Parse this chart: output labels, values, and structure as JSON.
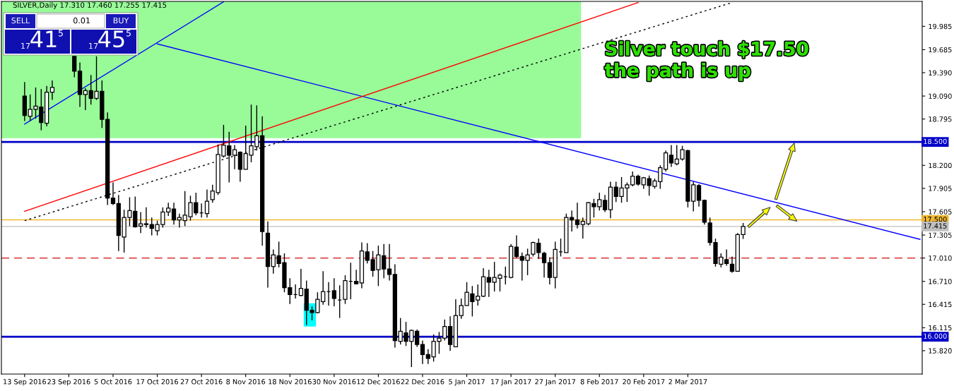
{
  "chart_data": {
    "type": "candlestick",
    "title": "SILVER,Daily 17.310 17.460 17.255 17.415",
    "categories": [
      "13 Sep 2016",
      null,
      null,
      null,
      null,
      null,
      null,
      null,
      "23 Sep 2016",
      null,
      null,
      null,
      null,
      null,
      null,
      null,
      "5 Oct 2016",
      null,
      null,
      null,
      null,
      null,
      null,
      null,
      "17 Oct 2016",
      null,
      null,
      null,
      null,
      null,
      null,
      null,
      "27 Oct 2016",
      null,
      null,
      null,
      null,
      null,
      null,
      null,
      "8 Nov 2016",
      null,
      null,
      null,
      null,
      null,
      null,
      null,
      "18 Nov 2016",
      null,
      null,
      null,
      null,
      null,
      null,
      null,
      "30 Nov 2016",
      null,
      null,
      null,
      null,
      null,
      null,
      null,
      "12 Dec 2016",
      null,
      null,
      null,
      null,
      null,
      null,
      null,
      "22 Dec 2016",
      null,
      null,
      null,
      null,
      null,
      null,
      null,
      "5 Jan 2017",
      null,
      null,
      null,
      null,
      null,
      null,
      null,
      "17 Jan 2017",
      null,
      null,
      null,
      null,
      null,
      null,
      null,
      "27 Jan 2017",
      null,
      null,
      null,
      null,
      null,
      null,
      null,
      "8 Feb 2017",
      null,
      null,
      null,
      null,
      null,
      null,
      null,
      "20 Feb 2017",
      null,
      null,
      null,
      null,
      null,
      null,
      null,
      "2 Mar 2017",
      null,
      null,
      null,
      null,
      null,
      null,
      null,
      null,
      null,
      null,
      null,
      null,
      null,
      null,
      null,
      null,
      null,
      null,
      null,
      null,
      null,
      null,
      null,
      null,
      null,
      null,
      null,
      null,
      null,
      null,
      null,
      null,
      null,
      null,
      null,
      null,
      null,
      null,
      null,
      null,
      null,
      null
    ],
    "ohlc": [
      [
        19.09,
        19.27,
        18.77,
        18.84
      ],
      [
        18.83,
        19.11,
        18.77,
        18.92
      ],
      [
        18.92,
        19.2,
        18.8,
        18.96
      ],
      [
        18.95,
        19.18,
        18.65,
        18.75
      ],
      [
        18.74,
        19.22,
        18.7,
        19.14
      ],
      [
        19.14,
        19.29,
        19.04,
        19.2
      ],
      null,
      null,
      null,
      [
        19.6,
        19.6,
        19.33,
        19.41
      ],
      [
        19.41,
        19.52,
        18.95,
        19.11
      ],
      [
        19.11,
        19.19,
        18.91,
        19.16
      ],
      [
        19.16,
        19.36,
        18.98,
        19.06
      ],
      [
        19.06,
        19.6,
        19.04,
        19.15
      ],
      [
        19.15,
        19.29,
        18.68,
        18.79
      ],
      [
        18.79,
        18.88,
        17.69,
        17.78
      ],
      [
        17.78,
        17.98,
        17.69,
        17.71
      ],
      [
        17.71,
        17.82,
        17.1,
        17.3
      ],
      [
        17.28,
        17.63,
        17.08,
        17.53
      ],
      [
        17.53,
        17.79,
        17.42,
        17.62
      ],
      [
        17.61,
        17.8,
        17.4,
        17.41
      ],
      [
        17.42,
        17.6,
        17.33,
        17.45
      ],
      [
        17.45,
        17.66,
        17.4,
        17.44
      ],
      [
        17.44,
        17.53,
        17.3,
        17.39
      ],
      [
        17.36,
        17.49,
        17.3,
        17.44
      ],
      [
        17.44,
        17.66,
        17.4,
        17.6
      ],
      [
        17.6,
        17.72,
        17.55,
        17.65
      ],
      [
        17.64,
        17.72,
        17.44,
        17.5
      ],
      [
        17.5,
        17.58,
        17.4,
        17.53
      ],
      [
        17.49,
        17.87,
        17.42,
        17.56
      ],
      [
        17.54,
        17.81,
        17.49,
        17.72
      ],
      [
        17.72,
        17.85,
        17.56,
        17.59
      ],
      [
        17.59,
        17.71,
        17.53,
        17.59
      ],
      [
        17.58,
        17.89,
        17.53,
        17.74
      ],
      [
        17.76,
        17.95,
        17.72,
        17.87
      ],
      [
        17.85,
        18.47,
        17.82,
        18.34
      ],
      [
        18.32,
        18.72,
        18.3,
        18.46
      ],
      [
        18.45,
        18.63,
        17.98,
        18.33
      ],
      [
        18.33,
        18.46,
        18.15,
        18.4
      ],
      [
        18.37,
        18.38,
        17.99,
        18.15
      ],
      [
        18.15,
        18.71,
        18.15,
        18.35
      ],
      [
        18.33,
        18.98,
        18.24,
        18.45
      ],
      [
        18.44,
        18.97,
        18.39,
        18.58
      ],
      [
        18.58,
        18.83,
        17.17,
        17.35
      ],
      [
        17.33,
        17.48,
        16.63,
        16.9
      ],
      [
        16.9,
        17.12,
        16.81,
        17.05
      ],
      [
        17.04,
        17.22,
        16.89,
        16.94
      ],
      [
        16.95,
        17.07,
        16.57,
        16.63
      ],
      [
        16.63,
        16.75,
        16.42,
        16.54
      ],
      [
        16.54,
        16.67,
        16.49,
        16.54
      ],
      [
        16.53,
        16.87,
        16.52,
        16.62
      ],
      [
        16.61,
        16.72,
        16.15,
        16.34
      ],
      [
        16.34,
        16.39,
        16.21,
        16.31
      ],
      [
        16.31,
        16.57,
        16.3,
        16.48
      ],
      [
        16.45,
        16.84,
        16.41,
        16.58
      ],
      [
        16.58,
        16.7,
        16.4,
        16.58
      ],
      [
        16.59,
        16.75,
        16.39,
        16.49
      ],
      [
        16.47,
        16.66,
        16.24,
        16.47
      ],
      [
        16.48,
        16.79,
        16.42,
        16.72
      ],
      [
        16.71,
        16.95,
        16.48,
        16.71
      ],
      [
        16.71,
        16.86,
        16.67,
        16.68
      ],
      [
        16.69,
        17.21,
        16.62,
        17.1
      ],
      [
        17.09,
        17.2,
        16.94,
        16.98
      ],
      [
        16.99,
        17.1,
        16.77,
        16.85
      ],
      [
        16.86,
        17.17,
        16.65,
        17.05
      ],
      [
        17.04,
        17.19,
        16.75,
        16.87
      ],
      [
        16.87,
        17.19,
        16.72,
        16.8
      ],
      [
        16.8,
        16.93,
        15.86,
        15.95
      ],
      [
        15.94,
        16.24,
        15.9,
        16.07
      ],
      [
        16.05,
        16.19,
        15.88,
        15.94
      ],
      [
        15.94,
        16.09,
        15.61,
        16.08
      ],
      [
        16.07,
        16.09,
        15.87,
        15.9
      ],
      [
        15.9,
        15.95,
        15.65,
        15.77
      ],
      [
        15.77,
        15.84,
        15.65,
        15.72
      ],
      [
        15.74,
        16.03,
        15.68,
        15.94
      ],
      [
        15.94,
        16.06,
        15.78,
        15.98
      ],
      [
        15.98,
        16.22,
        15.95,
        16.13
      ],
      [
        16.13,
        16.26,
        15.82,
        15.9
      ],
      [
        15.87,
        16.48,
        15.87,
        16.27
      ],
      [
        16.27,
        16.49,
        16.23,
        16.4
      ],
      [
        16.4,
        16.7,
        16.4,
        16.57
      ],
      [
        16.55,
        16.65,
        16.26,
        16.45
      ],
      [
        16.47,
        16.67,
        16.4,
        16.52
      ],
      [
        16.52,
        16.88,
        16.51,
        16.77
      ],
      [
        16.76,
        16.86,
        16.51,
        16.7
      ],
      [
        16.7,
        16.96,
        16.58,
        16.76
      ],
      [
        16.75,
        16.81,
        16.58,
        16.79
      ],
      [
        16.77,
        16.9,
        16.67,
        16.77
      ],
      [
        16.76,
        17.19,
        16.75,
        17.16
      ],
      [
        17.15,
        17.3,
        17.01,
        17.03
      ],
      [
        17.03,
        17.08,
        16.72,
        16.98
      ],
      [
        16.98,
        17.13,
        16.79,
        17.05
      ],
      [
        17.06,
        17.22,
        17.03,
        17.21
      ],
      [
        17.2,
        17.26,
        17.0,
        17.08
      ],
      [
        17.07,
        17.09,
        16.76,
        16.95
      ],
      [
        16.95,
        17.02,
        16.67,
        16.76
      ],
      [
        16.76,
        17.22,
        16.62,
        17.12
      ],
      [
        17.09,
        17.26,
        17.03,
        17.09
      ],
      [
        17.08,
        17.58,
        17.08,
        17.53
      ],
      [
        17.53,
        17.62,
        17.35,
        17.5
      ],
      [
        17.5,
        17.72,
        17.39,
        17.44
      ],
      [
        17.44,
        17.53,
        17.26,
        17.48
      ],
      [
        17.45,
        17.73,
        17.43,
        17.72
      ],
      [
        17.71,
        17.77,
        17.53,
        17.67
      ],
      [
        17.67,
        17.85,
        17.62,
        17.76
      ],
      [
        17.75,
        17.82,
        17.6,
        17.63
      ],
      [
        17.63,
        17.99,
        17.52,
        17.92
      ],
      [
        17.92,
        17.99,
        17.73,
        17.8
      ],
      [
        17.8,
        18.05,
        17.72,
        17.91
      ],
      [
        17.91,
        17.98,
        17.73,
        17.95
      ],
      [
        17.95,
        18.12,
        17.93,
        18.06
      ],
      [
        18.06,
        18.08,
        17.94,
        17.96
      ],
      [
        17.95,
        18.05,
        17.9,
        18.04
      ],
      [
        18.03,
        18.07,
        17.81,
        17.94
      ],
      [
        17.93,
        18.03,
        17.9,
        18.0
      ],
      [
        17.99,
        18.2,
        17.9,
        18.17
      ],
      [
        18.15,
        18.39,
        18.12,
        18.36
      ],
      [
        18.33,
        18.46,
        18.18,
        18.23
      ],
      [
        18.22,
        18.46,
        18.2,
        18.28
      ],
      [
        18.28,
        18.45,
        18.26,
        18.4
      ],
      [
        18.39,
        18.4,
        17.66,
        17.74
      ],
      [
        17.74,
        17.99,
        17.61,
        17.95
      ],
      [
        17.94,
        17.96,
        17.67,
        17.75
      ],
      [
        17.75,
        17.76,
        17.44,
        17.47
      ],
      [
        17.46,
        17.53,
        17.17,
        17.21
      ],
      [
        17.21,
        17.26,
        16.9,
        16.94
      ],
      [
        16.93,
        17.07,
        16.89,
        17.02
      ],
      [
        16.99,
        17.12,
        16.91,
        16.94
      ],
      [
        16.93,
        17.03,
        16.82,
        16.84
      ],
      [
        16.84,
        17.33,
        16.84,
        17.31
      ],
      [
        17.31,
        17.46,
        17.255,
        17.415
      ],
      null,
      null,
      null,
      null,
      null,
      null,
      null,
      null,
      null,
      null,
      null,
      null,
      null,
      null,
      null,
      null,
      null,
      null,
      null,
      null,
      null,
      null,
      null,
      null,
      null,
      null,
      null,
      null,
      null,
      null,
      null,
      null
    ],
    "series": [
      {
        "type": "line",
        "values": [
          18.73,
          null,
          null,
          null,
          null,
          null,
          null,
          null,
          null,
          null,
          null,
          null,
          null,
          null,
          null,
          null,
          null,
          null,
          null,
          null,
          null,
          null,
          null,
          null,
          null,
          null,
          null,
          null,
          null,
          null,
          null,
          null,
          null,
          null,
          null,
          null,
          20.3,
          null,
          null,
          null,
          null,
          null,
          null,
          null,
          null,
          null,
          null,
          null,
          null,
          null,
          null,
          null,
          null,
          null,
          null,
          null,
          null,
          null,
          null,
          null,
          null,
          null,
          null,
          null,
          null,
          null,
          null,
          null,
          null,
          null,
          null,
          null,
          null,
          null,
          null,
          null,
          null,
          null,
          null,
          null,
          null,
          null,
          null,
          null,
          null,
          null,
          null,
          null,
          null,
          null,
          null,
          null,
          null,
          null,
          null,
          null,
          null,
          null,
          null,
          null,
          null,
          null,
          null,
          null,
          null,
          null,
          null,
          null,
          null,
          null,
          null,
          null,
          null,
          null,
          null,
          null,
          null,
          null,
          null,
          null,
          null,
          null,
          null,
          null,
          null,
          null,
          null,
          null,
          null,
          null,
          null,
          null,
          null,
          null,
          null,
          null,
          null,
          null,
          null,
          null,
          null,
          null,
          null,
          null,
          null,
          null,
          null,
          null,
          null,
          null,
          null,
          null,
          null,
          null,
          null,
          null,
          null,
          null,
          null,
          null,
          null,
          null,
          null
        ],
        "color": "#0000ff",
        "line_style": "solid"
      },
      {
        "type": "line",
        "values": [
          null,
          null,
          null,
          null,
          null,
          null,
          null,
          null,
          null,
          null,
          null,
          null,
          null,
          null,
          null,
          null,
          null,
          null,
          null,
          null,
          null,
          null,
          null,
          null,
          19.76,
          null,
          null,
          null,
          null,
          null,
          null,
          null,
          null,
          null,
          null,
          null,
          null,
          null,
          null,
          null,
          null,
          null,
          null,
          null,
          null,
          null,
          null,
          null,
          null,
          null,
          null,
          null,
          null,
          null,
          null,
          null,
          null,
          null,
          null,
          null,
          null,
          null,
          null,
          null,
          null,
          null,
          null,
          null,
          null,
          null,
          null,
          null,
          null,
          null,
          null,
          null,
          null,
          null,
          null,
          null,
          null,
          null,
          null,
          null,
          null,
          null,
          null,
          null,
          null,
          null,
          null,
          null,
          null,
          null,
          null,
          null,
          null,
          null,
          null,
          null,
          null,
          null,
          null,
          null,
          null,
          null,
          null,
          null,
          null,
          null,
          null,
          null,
          null,
          null,
          null,
          null,
          null,
          null,
          null,
          null,
          null,
          null,
          null,
          null,
          null,
          null,
          null,
          null,
          null,
          null,
          null,
          null,
          null,
          null,
          null,
          null,
          null,
          null,
          null,
          null,
          null,
          null,
          null,
          null,
          null,
          null,
          null,
          null,
          null,
          null,
          null,
          null,
          null,
          null,
          null,
          null,
          null,
          null,
          null,
          null,
          null,
          null,
          17.25
        ],
        "color": "#0000ff",
        "line_style": "solid"
      },
      {
        "type": "line",
        "values": [
          17.61,
          null,
          null,
          null,
          null,
          null,
          null,
          null,
          null,
          null,
          null,
          null,
          null,
          null,
          null,
          null,
          null,
          null,
          null,
          null,
          null,
          null,
          null,
          null,
          null,
          null,
          null,
          null,
          null,
          null,
          null,
          null,
          null,
          null,
          null,
          null,
          null,
          null,
          null,
          null,
          null,
          null,
          null,
          null,
          null,
          null,
          null,
          null,
          null,
          null,
          null,
          null,
          null,
          null,
          null,
          null,
          null,
          null,
          null,
          null,
          null,
          null,
          null,
          null,
          null,
          null,
          null,
          null,
          null,
          null,
          null,
          null,
          null,
          null,
          null,
          null,
          null,
          null,
          null,
          null,
          null,
          null,
          null,
          null,
          null,
          null,
          null,
          null,
          null,
          null,
          null,
          null,
          null,
          null,
          null,
          null,
          null,
          null,
          null,
          null,
          null,
          null,
          null,
          null,
          null,
          null,
          null,
          null,
          null,
          null,
          null,
          20.29,
          null,
          null,
          null,
          null,
          null,
          null,
          null,
          null,
          null,
          null,
          null,
          null,
          null,
          null,
          null,
          null,
          null,
          null,
          null,
          null,
          null,
          null,
          null,
          null,
          null,
          null,
          null,
          null,
          null,
          null,
          null,
          null,
          null,
          null,
          null,
          null,
          null,
          null,
          null,
          null,
          null,
          null,
          null,
          null,
          null,
          null,
          null,
          null,
          null,
          null,
          null
        ],
        "color": "#ff0000",
        "line_style": "solid"
      },
      {
        "type": "line",
        "values": [
          17.49,
          null,
          null,
          null,
          null,
          null,
          null,
          null,
          null,
          null,
          null,
          null,
          null,
          null,
          null,
          null,
          null,
          null,
          null,
          null,
          null,
          null,
          null,
          null,
          null,
          null,
          null,
          null,
          null,
          null,
          null,
          null,
          null,
          null,
          null,
          null,
          null,
          null,
          null,
          null,
          null,
          null,
          null,
          null,
          null,
          null,
          null,
          null,
          null,
          null,
          null,
          null,
          null,
          null,
          null,
          null,
          null,
          null,
          null,
          null,
          null,
          null,
          null,
          null,
          null,
          null,
          null,
          null,
          null,
          null,
          null,
          null,
          null,
          null,
          null,
          null,
          null,
          null,
          null,
          null,
          null,
          null,
          null,
          null,
          null,
          null,
          null,
          null,
          null,
          null,
          null,
          null,
          null,
          null,
          null,
          null,
          null,
          null,
          null,
          null,
          null,
          null,
          null,
          null,
          null,
          null,
          null,
          null,
          null,
          null,
          null,
          null,
          null,
          null,
          null,
          null,
          null,
          null,
          null,
          null,
          null,
          null,
          null,
          null,
          null,
          null,
          null,
          null,
          20.29,
          null,
          null,
          null,
          null,
          null,
          null,
          null,
          null,
          null,
          null,
          null,
          null,
          null,
          null,
          null,
          null,
          null,
          null,
          null,
          null,
          null,
          null,
          null,
          null,
          null,
          null,
          null,
          null,
          null,
          null,
          null,
          null,
          null,
          null
        ],
        "color": "#000000",
        "line_style": "dotted"
      }
    ],
    "ylim": [
      15.52,
      20.305
    ],
    "yticks": [
      19.985,
      19.685,
      {
        "value": 19.39,
        "label": "19.390"
      },
      {
        "value": 19.09,
        "label": "19.090"
      },
      18.795,
      {
        "value": 18.2,
        "label": "18.200"
      },
      17.905,
      17.605,
      17.305,
      {
        "value": 17.01,
        "label": "17.010"
      },
      {
        "value": 16.71,
        "label": "16.710"
      },
      16.415,
      16.115,
      {
        "value": 15.82,
        "label": "15.820"
      }
    ],
    "ref_lines": [
      {
        "axis": "y",
        "value": 18.5,
        "label": "18.500",
        "color": "#0000c8",
        "line_style": "solid"
      },
      {
        "axis": "y",
        "value": 16.0,
        "label": "16.000",
        "color": "#0000c8",
        "line_style": "solid"
      },
      {
        "axis": "y",
        "value": 17.5,
        "label": "17.500",
        "color": "#f0b830",
        "line_style": "solid"
      },
      {
        "axis": "y",
        "value": 17.415,
        "label": "17.415",
        "color": "#c0c0c0",
        "line_style": "solid"
      },
      {
        "axis": "y",
        "value": 17.01,
        "color": "#d01010",
        "line_style": "dashed"
      }
    ],
    "annotations": [
      "Silver touch $17.50\nthe path is up",
      "SELL",
      "0.01",
      "BUY",
      "17",
      "41",
      "5",
      "17",
      "45",
      "5"
    ]
  }
}
